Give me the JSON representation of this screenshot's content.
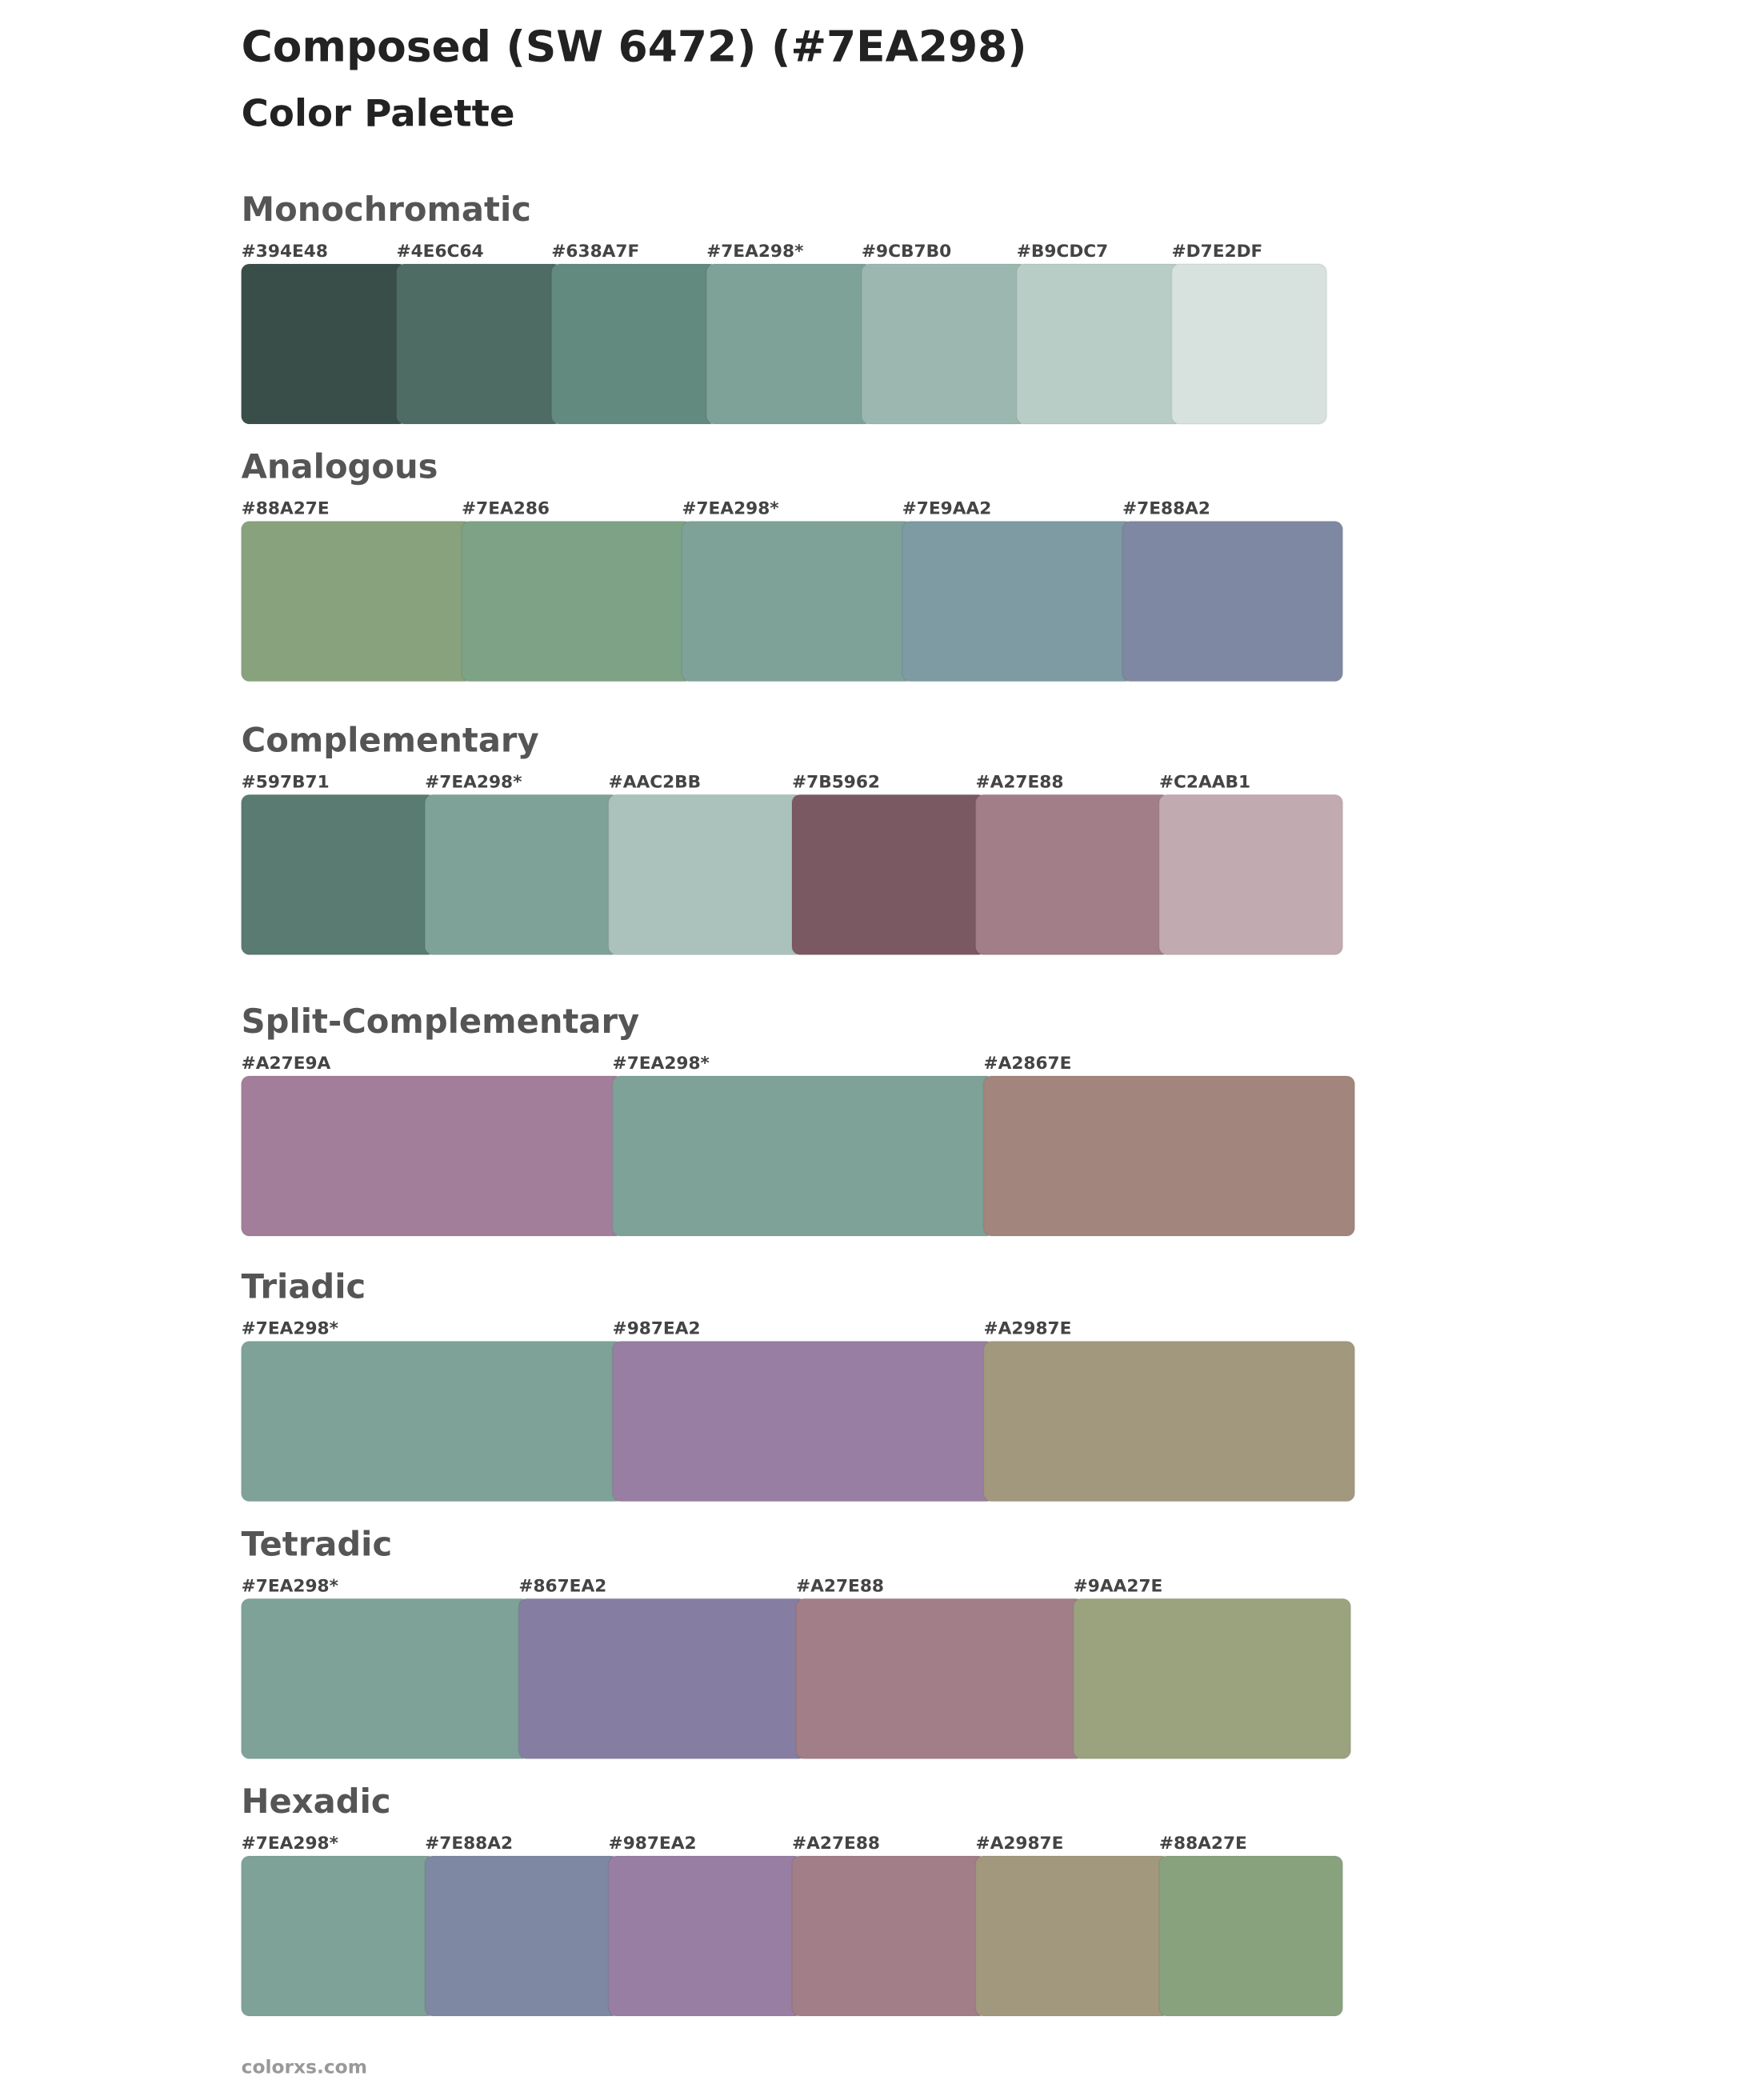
{
  "header": {
    "title": "Composed (SW 6472) (#7EA298)",
    "subtitle": "Color Palette"
  },
  "sections": [
    {
      "title": "Monochromatic",
      "swatches": [
        {
          "label": "#394E48",
          "color": "#394E48"
        },
        {
          "label": "#4E6C64",
          "color": "#4E6C64"
        },
        {
          "label": "#638A7F",
          "color": "#638A7F"
        },
        {
          "label": "#7EA298*",
          "color": "#7EA298"
        },
        {
          "label": "#9CB7B0",
          "color": "#9CB7B0"
        },
        {
          "label": "#B9CDC7",
          "color": "#B9CDC7"
        },
        {
          "label": "#D7E2DF",
          "color": "#D7E2DF"
        }
      ]
    },
    {
      "title": "Analogous",
      "swatches": [
        {
          "label": "#88A27E",
          "color": "#88A27E"
        },
        {
          "label": "#7EA286",
          "color": "#7EA286"
        },
        {
          "label": "#7EA298*",
          "color": "#7EA298"
        },
        {
          "label": "#7E9AA2",
          "color": "#7E9AA2"
        },
        {
          "label": "#7E88A2",
          "color": "#7E88A2"
        }
      ]
    },
    {
      "title": "Complementary",
      "swatches": [
        {
          "label": "#597B71",
          "color": "#597B71"
        },
        {
          "label": "#7EA298*",
          "color": "#7EA298"
        },
        {
          "label": "#AAC2BB",
          "color": "#AAC2BB"
        },
        {
          "label": "#7B5962",
          "color": "#7B5962"
        },
        {
          "label": "#A27E88",
          "color": "#A27E88"
        },
        {
          "label": "#C2AAB1",
          "color": "#C2AAB1"
        }
      ]
    },
    {
      "title": "Split-Complementary",
      "swatches": [
        {
          "label": "#A27E9A",
          "color": "#A27E9A"
        },
        {
          "label": "#7EA298*",
          "color": "#7EA298"
        },
        {
          "label": "#A2867E",
          "color": "#A2867E"
        }
      ]
    },
    {
      "title": "Triadic",
      "swatches": [
        {
          "label": "#7EA298*",
          "color": "#7EA298"
        },
        {
          "label": "#987EA2",
          "color": "#987EA2"
        },
        {
          "label": "#A2987E",
          "color": "#A2987E"
        }
      ]
    },
    {
      "title": "Tetradic",
      "swatches": [
        {
          "label": "#7EA298*",
          "color": "#7EA298"
        },
        {
          "label": "#867EA2",
          "color": "#867EA2"
        },
        {
          "label": "#A27E88",
          "color": "#A27E88"
        },
        {
          "label": "#9AA27E",
          "color": "#9AA27E"
        }
      ]
    },
    {
      "title": "Hexadic",
      "swatches": [
        {
          "label": "#7EA298*",
          "color": "#7EA298"
        },
        {
          "label": "#7E88A2",
          "color": "#7E88A2"
        },
        {
          "label": "#987EA2",
          "color": "#987EA2"
        },
        {
          "label": "#A27E88",
          "color": "#A27E88"
        },
        {
          "label": "#A2987E",
          "color": "#A2987E"
        },
        {
          "label": "#88A27E",
          "color": "#88A27E"
        }
      ]
    }
  ],
  "footer": "colorxs.com"
}
